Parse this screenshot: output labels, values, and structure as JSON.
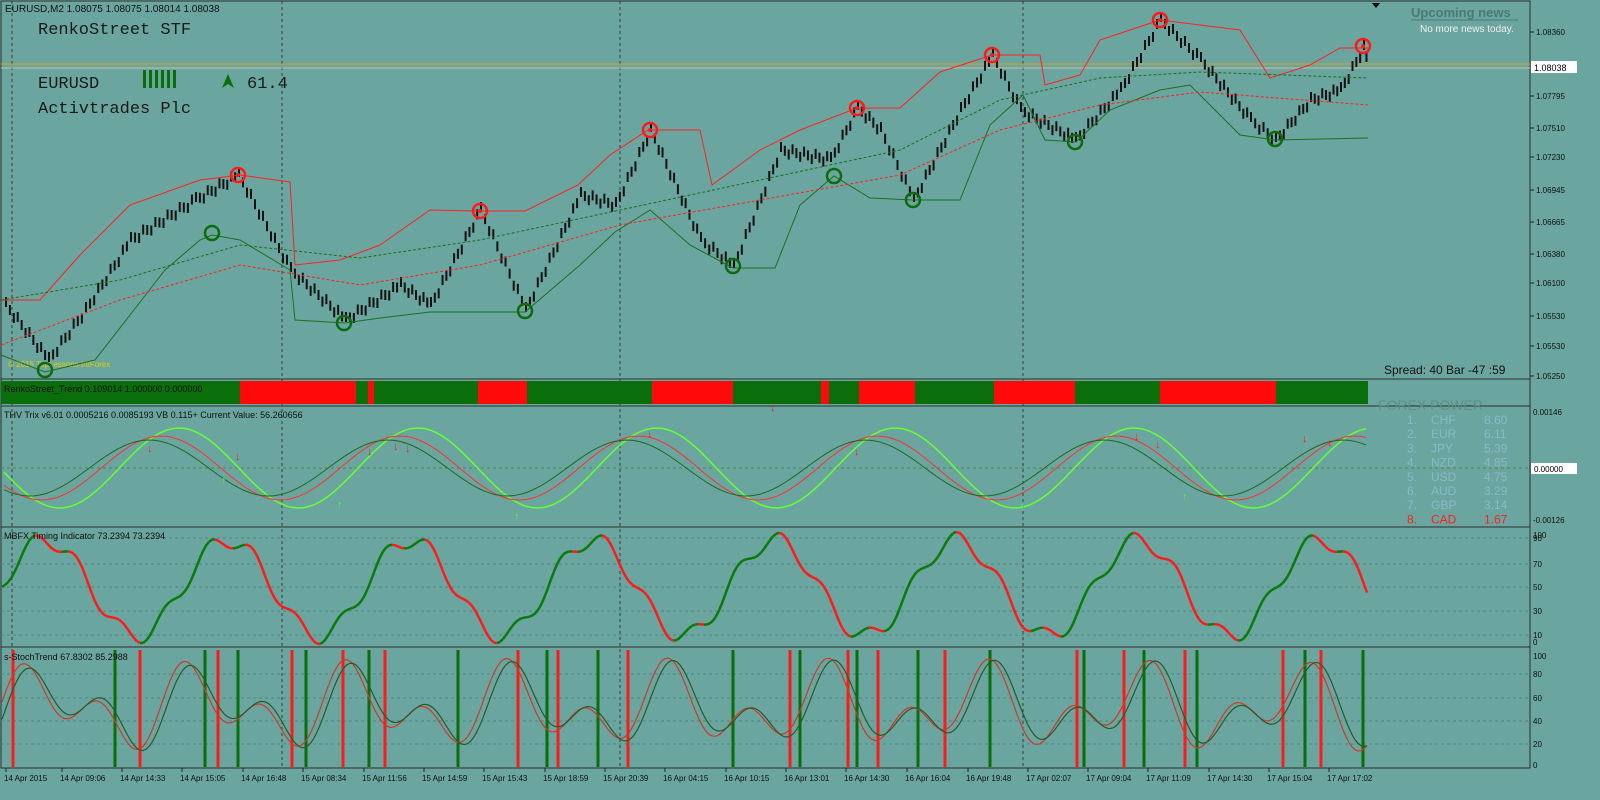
{
  "window": {
    "title": "EURUSD,M2  1.08075 1.08075 1.08014 1.08038"
  },
  "overlay": {
    "strategy": "RenkoStreet STF",
    "symbol": "EURUSD",
    "strength_value": "61.4",
    "broker": "Activtrades Plc",
    "copyright": "© 2015 TopLessons.In/Forex",
    "spread_bar": "Spread: 40  Bar  -47 :59"
  },
  "news": {
    "title": "Upcoming news",
    "subtitle": "No more news today."
  },
  "price_axis": {
    "labels": [
      "1.08360",
      "1.08038",
      "1.07795",
      "1.07510",
      "1.07230",
      "1.06945",
      "1.06665",
      "1.06380",
      "1.06100",
      "1.05530",
      "1.05530",
      "1.05250"
    ],
    "current": "1.08038"
  },
  "panels": {
    "trend": {
      "label": "RenkoStreet_Trend 0.109014 1.000000 0.000000",
      "overlay_text": "FOREX POWER"
    },
    "trix": {
      "label": "THV Trix v6.01 0.0005216 0.0085193  VB  0.115+  Current Value: 56.260656",
      "axis": [
        "0.00146",
        "0.00000",
        "-0.00126"
      ]
    },
    "mbfx": {
      "label": "MBFX Timing Indicator 73.2394 73.2394",
      "axis": [
        "100",
        "90",
        "70",
        "50",
        "30",
        "10",
        "0"
      ]
    },
    "stoch": {
      "label": "s-StochTrend 67.8302 85.2988",
      "axis": [
        "100",
        "80",
        "60",
        "40",
        "20",
        "0"
      ]
    }
  },
  "currency_strength": [
    {
      "rank": "1.",
      "cur": "CHF",
      "val": "8.60"
    },
    {
      "rank": "2.",
      "cur": "EUR",
      "val": "6.11"
    },
    {
      "rank": "3.",
      "cur": "JPY",
      "val": "5.39"
    },
    {
      "rank": "4.",
      "cur": "NZD",
      "val": "4.85"
    },
    {
      "rank": "5.",
      "cur": "USD",
      "val": "4.75"
    },
    {
      "rank": "6.",
      "cur": "AUD",
      "val": "3.29"
    },
    {
      "rank": "7.",
      "cur": "GBP",
      "val": "3.14"
    },
    {
      "rank": "8.",
      "cur": "CAD",
      "val": "1.67"
    }
  ],
  "time_axis": [
    "14 Apr 2015",
    "14 Apr 09:06",
    "14 Apr 14:33",
    "14 Apr 15:05",
    "14 Apr 16:48",
    "15 Apr 08:34",
    "15 Apr 11:56",
    "15 Apr 14:59",
    "15 Apr 15:43",
    "15 Apr 18:59",
    "15 Apr 20:39",
    "16 Apr 04:15",
    "16 Apr 10:15",
    "16 Apr 13:01",
    "16 Apr 14:30",
    "16 Apr 16:04",
    "16 Apr 19:48",
    "17 Apr 02:07",
    "17 Apr 09:04",
    "17 Apr 11:09",
    "17 Apr 14:30",
    "17 Apr 15:04",
    "17 Apr 17:02"
  ],
  "colors": {
    "background": "#6aa69f",
    "bull": "#1f7a1f",
    "bear": "#ff1a1a",
    "grid": "#4e7e78",
    "text": "#1a1a1a",
    "label_green": "#0a5e0a"
  }
}
